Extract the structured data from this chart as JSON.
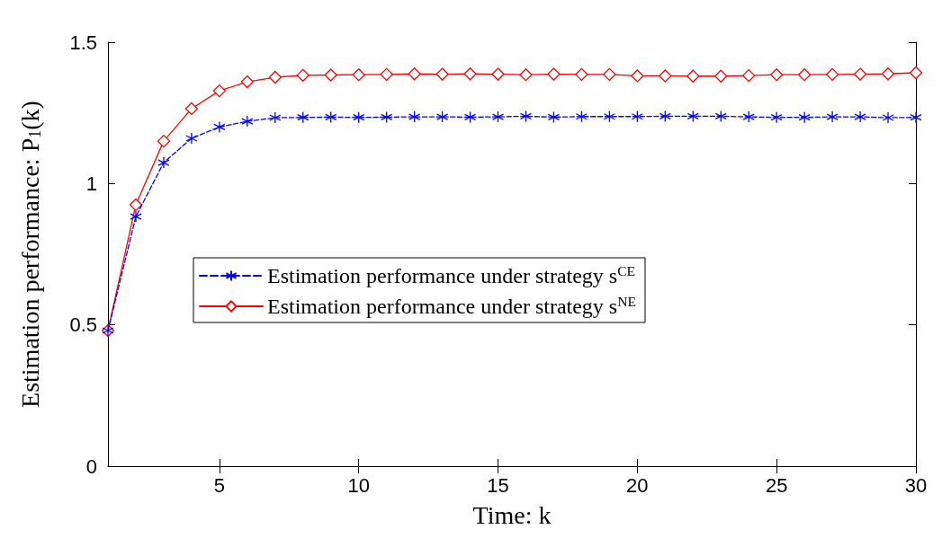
{
  "chart_data": {
    "type": "line",
    "xlabel": "Time: k",
    "ylabel": "Estimation performance: P$_{1}$(k)",
    "x": [
      1,
      2,
      3,
      4,
      5,
      6,
      7,
      8,
      9,
      10,
      11,
      12,
      13,
      14,
      15,
      16,
      17,
      18,
      19,
      20,
      21,
      22,
      23,
      24,
      25,
      26,
      27,
      28,
      29,
      30
    ],
    "series": [
      {
        "name": "Estimation performance under strategy s$^{CE}$",
        "color": "#0000ff",
        "marker": "cross",
        "line_style": "dashed",
        "values": [
          0.48,
          0.883,
          1.074,
          1.16,
          1.2,
          1.22,
          1.233,
          1.234,
          1.235,
          1.234,
          1.235,
          1.236,
          1.236,
          1.235,
          1.236,
          1.238,
          1.235,
          1.237,
          1.237,
          1.237,
          1.238,
          1.238,
          1.238,
          1.236,
          1.234,
          1.234,
          1.236,
          1.236,
          1.233,
          1.234
        ]
      },
      {
        "name": "Estimation performance under strategy s$^{NE}$",
        "color": "#ff0000",
        "marker": "diamond",
        "line_style": "solid",
        "values": [
          0.48,
          0.925,
          1.15,
          1.265,
          1.328,
          1.36,
          1.376,
          1.383,
          1.384,
          1.385,
          1.386,
          1.388,
          1.387,
          1.388,
          1.387,
          1.385,
          1.387,
          1.386,
          1.386,
          1.381,
          1.381,
          1.38,
          1.38,
          1.382,
          1.385,
          1.385,
          1.386,
          1.387,
          1.388,
          1.392
        ]
      }
    ],
    "xlim": [
      1,
      30
    ],
    "xticks": [
      5,
      10,
      15,
      20,
      25,
      30
    ],
    "ylim": [
      0,
      1.5
    ],
    "yticks": [
      0,
      0.5,
      1,
      1.5
    ],
    "grid": false,
    "legend": "center"
  }
}
